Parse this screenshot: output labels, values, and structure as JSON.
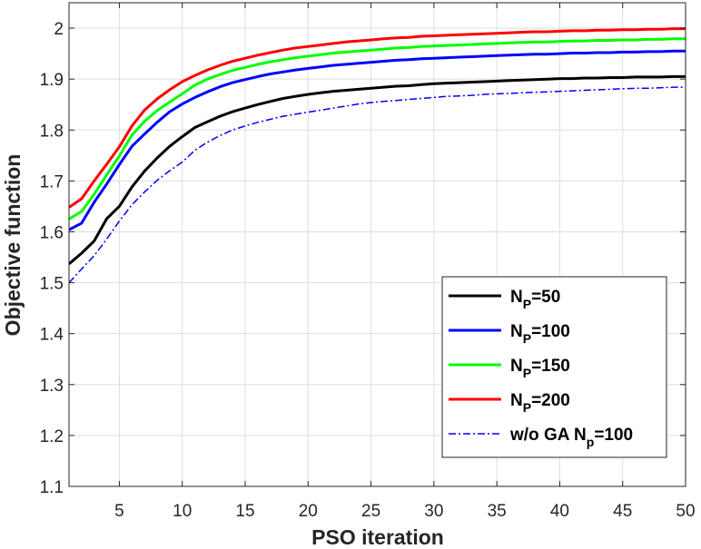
{
  "chart_data": {
    "type": "line",
    "xlabel": "PSO iteration",
    "ylabel": "Objective function",
    "xlim": [
      1,
      50
    ],
    "ylim": [
      1.1,
      2.05
    ],
    "xticks": [
      5,
      10,
      15,
      20,
      25,
      30,
      35,
      40,
      45,
      50
    ],
    "yticks": [
      1.1,
      1.2,
      1.3,
      1.4,
      1.5,
      1.6,
      1.7,
      1.8,
      1.9,
      2
    ],
    "grid": true,
    "legend_position": "bottom-right",
    "x": [
      1,
      2,
      3,
      4,
      5,
      6,
      7,
      8,
      9,
      10,
      11,
      12,
      13,
      14,
      15,
      16,
      17,
      18,
      19,
      20,
      21,
      22,
      23,
      24,
      25,
      26,
      27,
      28,
      29,
      30,
      31,
      32,
      33,
      34,
      35,
      36,
      37,
      38,
      39,
      40,
      41,
      42,
      43,
      44,
      45,
      46,
      47,
      48,
      49,
      50
    ],
    "series": [
      {
        "label_main": "N",
        "label_sub": "P",
        "label_rest": "=50",
        "color": "#000000",
        "style": "solid",
        "values": [
          1.537,
          1.558,
          1.582,
          1.626,
          1.65,
          1.688,
          1.719,
          1.745,
          1.768,
          1.787,
          1.805,
          1.816,
          1.827,
          1.836,
          1.843,
          1.85,
          1.856,
          1.862,
          1.866,
          1.87,
          1.873,
          1.876,
          1.878,
          1.88,
          1.882,
          1.884,
          1.886,
          1.887,
          1.889,
          1.891,
          1.892,
          1.893,
          1.894,
          1.895,
          1.896,
          1.897,
          1.898,
          1.899,
          1.9,
          1.901,
          1.901,
          1.902,
          1.902,
          1.903,
          1.903,
          1.904,
          1.904,
          1.904,
          1.905,
          1.905
        ]
      },
      {
        "label_main": "N",
        "label_sub": "P",
        "label_rest": "=100",
        "color": "#0000ff",
        "style": "solid",
        "values": [
          1.604,
          1.617,
          1.658,
          1.694,
          1.732,
          1.768,
          1.792,
          1.815,
          1.836,
          1.851,
          1.864,
          1.875,
          1.885,
          1.893,
          1.899,
          1.905,
          1.91,
          1.914,
          1.918,
          1.921,
          1.924,
          1.927,
          1.929,
          1.931,
          1.933,
          1.935,
          1.937,
          1.938,
          1.94,
          1.941,
          1.942,
          1.943,
          1.944,
          1.945,
          1.946,
          1.947,
          1.948,
          1.949,
          1.949,
          1.95,
          1.951,
          1.951,
          1.952,
          1.952,
          1.953,
          1.953,
          1.954,
          1.954,
          1.955,
          1.955
        ]
      },
      {
        "label_main": "N",
        "label_sub": "P",
        "label_rest": "=150",
        "color": "#00ff00",
        "style": "solid",
        "values": [
          1.625,
          1.64,
          1.674,
          1.712,
          1.749,
          1.79,
          1.817,
          1.838,
          1.855,
          1.871,
          1.888,
          1.9,
          1.909,
          1.917,
          1.923,
          1.929,
          1.934,
          1.938,
          1.942,
          1.945,
          1.948,
          1.951,
          1.953,
          1.955,
          1.957,
          1.959,
          1.961,
          1.962,
          1.964,
          1.965,
          1.966,
          1.967,
          1.968,
          1.969,
          1.97,
          1.971,
          1.972,
          1.973,
          1.973,
          1.974,
          1.975,
          1.975,
          1.976,
          1.976,
          1.977,
          1.977,
          1.978,
          1.978,
          1.979,
          1.979
        ]
      },
      {
        "label_main": "N",
        "label_sub": "P",
        "label_rest": "=200",
        "color": "#ff0000",
        "style": "solid",
        "values": [
          1.648,
          1.665,
          1.7,
          1.733,
          1.767,
          1.808,
          1.839,
          1.861,
          1.879,
          1.895,
          1.907,
          1.918,
          1.927,
          1.935,
          1.941,
          1.947,
          1.952,
          1.957,
          1.961,
          1.964,
          1.967,
          1.97,
          1.973,
          1.975,
          1.977,
          1.979,
          1.981,
          1.982,
          1.984,
          1.985,
          1.986,
          1.987,
          1.988,
          1.989,
          1.99,
          1.991,
          1.992,
          1.993,
          1.993,
          1.994,
          1.995,
          1.995,
          1.996,
          1.996,
          1.997,
          1.997,
          1.998,
          1.998,
          1.999,
          1.999
        ]
      },
      {
        "label_main": "w/o GA N",
        "label_sub": "p",
        "label_rest": "=100",
        "color": "#0000ff",
        "style": "dashdot",
        "values": [
          1.5,
          1.527,
          1.553,
          1.586,
          1.621,
          1.653,
          1.678,
          1.701,
          1.72,
          1.737,
          1.76,
          1.776,
          1.789,
          1.8,
          1.808,
          1.815,
          1.821,
          1.827,
          1.831,
          1.835,
          1.839,
          1.843,
          1.847,
          1.851,
          1.854,
          1.856,
          1.858,
          1.86,
          1.862,
          1.864,
          1.866,
          1.867,
          1.868,
          1.87,
          1.871,
          1.872,
          1.873,
          1.874,
          1.875,
          1.876,
          1.877,
          1.878,
          1.879,
          1.88,
          1.881,
          1.882,
          1.882,
          1.883,
          1.884,
          1.884
        ]
      }
    ]
  }
}
